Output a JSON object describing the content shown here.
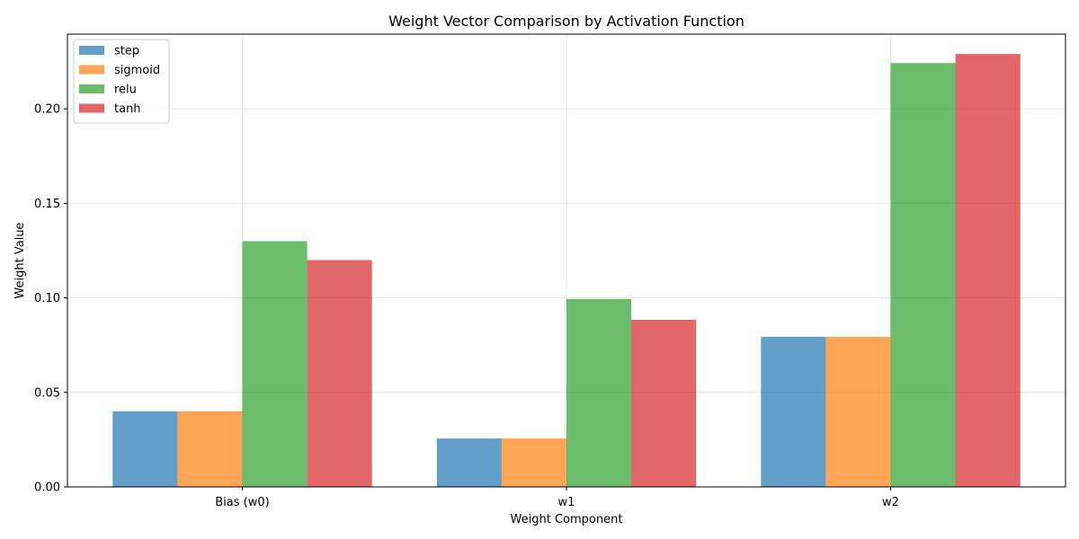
{
  "chart_data": {
    "type": "bar",
    "title": "Weight Vector Comparison by Activation Function",
    "xlabel": "Weight Component",
    "ylabel": "Weight Value",
    "categories": [
      "Bias (w0)",
      "w1",
      "w2"
    ],
    "series": [
      {
        "name": "step",
        "color": "#1f77b4",
        "values": [
          0.04,
          0.0256,
          0.0794
        ]
      },
      {
        "name": "sigmoid",
        "color": "#ff7f0e",
        "values": [
          0.04,
          0.0256,
          0.0794
        ]
      },
      {
        "name": "relu",
        "color": "#2ca02c",
        "values": [
          0.13,
          0.0994,
          0.2242
        ]
      },
      {
        "name": "tanh",
        "color": "#d62728",
        "values": [
          0.12,
          0.0884,
          0.229
        ]
      }
    ],
    "ylim": [
      0,
      0.2395
    ],
    "yticks": [
      0.0,
      0.05,
      0.1,
      0.15,
      0.2
    ],
    "ytick_labels": [
      "0.00",
      "0.05",
      "0.10",
      "0.15",
      "0.20"
    ],
    "grid": true,
    "legend_position": "top-left",
    "bar_opacity": 0.7
  }
}
